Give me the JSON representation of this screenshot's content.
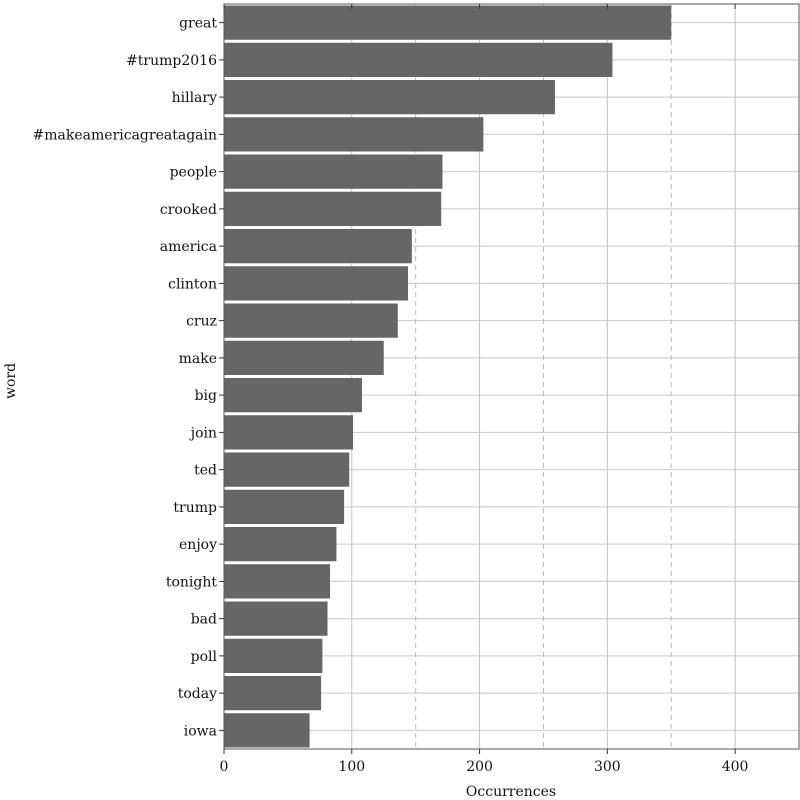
{
  "chart_data": {
    "type": "bar",
    "orientation": "horizontal",
    "categories": [
      "great",
      "#trump2016",
      "hillary",
      "#makeamericagreatagain",
      "people",
      "crooked",
      "america",
      "clinton",
      "cruz",
      "make",
      "big",
      "join",
      "ted",
      "trump",
      "enjoy",
      "tonight",
      "bad",
      "poll",
      "today",
      "iowa"
    ],
    "values": [
      350,
      304,
      259,
      203,
      171,
      170,
      147,
      144,
      136,
      125,
      108,
      101,
      98,
      94,
      88,
      83,
      81,
      77,
      76,
      67
    ],
    "xlabel": "Occurrences",
    "ylabel": "word",
    "xlim": [
      0,
      450
    ],
    "xticks": [
      0,
      100,
      200,
      300,
      400
    ],
    "reference_lines": [
      150,
      250,
      350
    ],
    "grid": true,
    "bar_color": "#666666"
  }
}
